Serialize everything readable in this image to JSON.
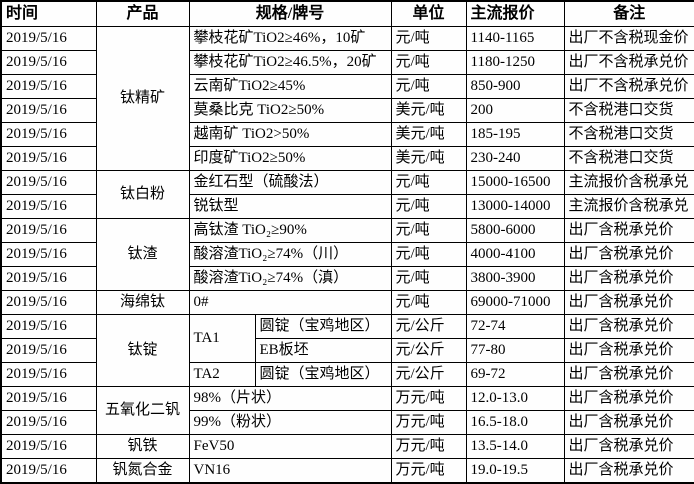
{
  "date": "2019/5/16",
  "header": {
    "time": "时间",
    "product": "产品",
    "spec": "规格/牌号",
    "unit": "单位",
    "price": "主流报价",
    "note": "备注"
  },
  "colors": {
    "border": "#000000",
    "background": "#ffffff",
    "text": "#000000"
  },
  "groups": [
    {
      "product": "钛精矿",
      "rows": [
        {
          "spec": "攀枝花矿TiO2≥46%，10矿",
          "unit": "元/吨",
          "price": "1140-1165",
          "note": "出厂不含税现金价"
        },
        {
          "spec": "攀枝花矿TiO2≥46.5%，20矿",
          "unit": "元/吨",
          "price": "1180-1250",
          "note": "出厂不含税承兑价"
        },
        {
          "spec": "云南矿TiO2≥45%",
          "unit": "元/吨",
          "price": "850-900",
          "note": "出厂不含税承兑价"
        },
        {
          "spec": "莫桑比克 TiO2≥50%",
          "unit": "美元/吨",
          "price": "200",
          "note": "不含税港口交货"
        },
        {
          "spec": "越南矿 TiO2>50%",
          "unit": "美元/吨",
          "price": "185-195",
          "note": "不含税港口交货"
        },
        {
          "spec": "印度矿TiO2≥50%",
          "unit": "美元/吨",
          "price": "230-240",
          "note": "不含税港口交货"
        }
      ]
    },
    {
      "product": "钛白粉",
      "rows": [
        {
          "spec": "金红石型（硫酸法）",
          "unit": "元/吨",
          "price": "15000-16500",
          "note": "主流报价含税承兑"
        },
        {
          "spec": "锐钛型",
          "unit": "元/吨",
          "price": "13000-14000",
          "note": "主流报价含税承兑"
        }
      ]
    },
    {
      "product": "钛渣",
      "rows": [
        {
          "spec": "高钛渣 TiO₂≥90%",
          "unit": "元/吨",
          "price": "5800-6000",
          "note": "出厂含税承兑价"
        },
        {
          "spec": "酸溶渣TiO₂≥74%（川）",
          "unit": "元/吨",
          "price": "4000-4100",
          "note": "出厂含税承兑价"
        },
        {
          "spec": "酸溶渣TiO₂≥74%（滇）",
          "unit": "元/吨",
          "price": "3800-3900",
          "note": "出厂含税承兑价"
        }
      ]
    },
    {
      "product": "海绵钛",
      "rows": [
        {
          "spec": "0#",
          "unit": "元/吨",
          "price": "69000-71000",
          "note": "出厂含税承兑价"
        }
      ]
    },
    {
      "product": "钛锭",
      "rows": [
        {
          "spec": "TA1",
          "spec_rowspan": 2,
          "subspec": "圆锭（宝鸡地区）",
          "unit": "元/公斤",
          "price": "72-74",
          "note": "出厂含税承兑价"
        },
        {
          "subspec": "EB板坯",
          "unit": "元/公斤",
          "price": "77-80",
          "note": "出厂含税承兑价"
        },
        {
          "spec": "TA2",
          "subspec": "圆锭（宝鸡地区）",
          "unit": "元/公斤",
          "price": "69-72",
          "note": "出厂含税承兑价"
        }
      ]
    },
    {
      "product": "五氧化二钒",
      "rows": [
        {
          "spec": "98%（片状）",
          "unit": "万元/吨",
          "price": "12.0-13.0",
          "note": "出厂含税承兑价"
        },
        {
          "spec": "99%（粉状）",
          "unit": "万元/吨",
          "price": "16.5-18.0",
          "note": "出厂含税承兑价"
        }
      ]
    },
    {
      "product": "钒铁",
      "rows": [
        {
          "spec": "FeV50",
          "unit": "万元/吨",
          "price": "13.5-14.0",
          "note": "出厂含税承兑价"
        }
      ]
    },
    {
      "product": "钒氮合金",
      "rows": [
        {
          "spec": "VN16",
          "unit": "万元/吨",
          "price": "19.0-19.5",
          "note": "出厂含税承兑价"
        }
      ]
    }
  ]
}
